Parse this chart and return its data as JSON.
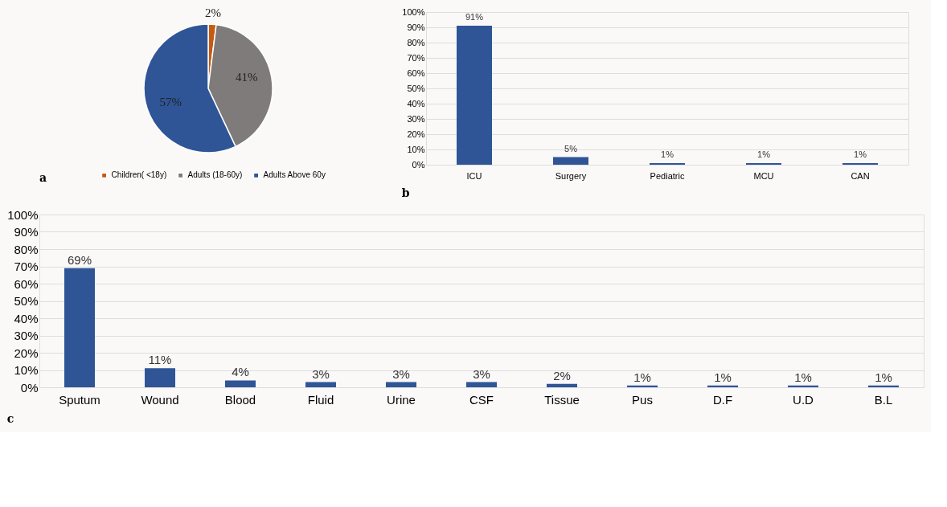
{
  "chart_data": [
    {
      "type": "pie",
      "categories": [
        "Children( <18y)",
        "Adults (18-60y)",
        "Adults Above 60y"
      ],
      "values": [
        2,
        41,
        57
      ],
      "colors": [
        "#c55a11",
        "#7f7b7b",
        "#2f5597"
      ],
      "value_labels": [
        "2%",
        "41%",
        "57%"
      ],
      "legend": "bottom",
      "annotations": [
        "a"
      ]
    },
    {
      "type": "bar",
      "categories": [
        "ICU",
        "Surgery",
        "Pediatric",
        "MCU",
        "CAN"
      ],
      "values": [
        91,
        5,
        1,
        1,
        1
      ],
      "color": "#2f5597",
      "value_labels": [
        "91%",
        "5%",
        "1%",
        "1%",
        "1%"
      ],
      "ylim": [
        0,
        100
      ],
      "yticks": [
        {
          "value": 0,
          "label": "0%"
        },
        {
          "value": 10,
          "label": "10%"
        },
        {
          "value": 20,
          "label": "20%"
        },
        {
          "value": 30,
          "label": "30%"
        },
        {
          "value": 40,
          "label": "40%"
        },
        {
          "value": 50,
          "label": "50%"
        },
        {
          "value": 60,
          "label": "60%"
        },
        {
          "value": 70,
          "label": "70%"
        },
        {
          "value": 80,
          "label": "80%"
        },
        {
          "value": 90,
          "label": "90%"
        },
        {
          "value": 100,
          "label": "100%"
        }
      ],
      "grid": "y",
      "annotations": [
        "b"
      ]
    },
    {
      "type": "bar",
      "categories": [
        "Sputum",
        "Wound",
        "Blood",
        "Fluid",
        "Urine",
        "CSF",
        "Tissue",
        "Pus",
        "D.F",
        "U.D",
        "B.L"
      ],
      "values": [
        69,
        11,
        4,
        3,
        3,
        3,
        2,
        1,
        1,
        1,
        1
      ],
      "color": "#2f5597",
      "value_labels": [
        "69%",
        "11%",
        "4%",
        "3%",
        "3%",
        "3%",
        "2%",
        "1%",
        "1%",
        "1%",
        "1%"
      ],
      "ylim": [
        0,
        100
      ],
      "yticks": [
        {
          "value": 0,
          "label": "0%"
        },
        {
          "value": 10,
          "label": "10%"
        },
        {
          "value": 20,
          "label": "20%"
        },
        {
          "value": 30,
          "label": "30%"
        },
        {
          "value": 40,
          "label": "40%"
        },
        {
          "value": 50,
          "label": "50%"
        },
        {
          "value": 60,
          "label": "60%"
        },
        {
          "value": 70,
          "label": "70%"
        },
        {
          "value": 80,
          "label": "80%"
        },
        {
          "value": 90,
          "label": "90%"
        },
        {
          "value": 100,
          "label": "100%"
        }
      ],
      "grid": "y",
      "annotations": [
        "c"
      ]
    }
  ]
}
